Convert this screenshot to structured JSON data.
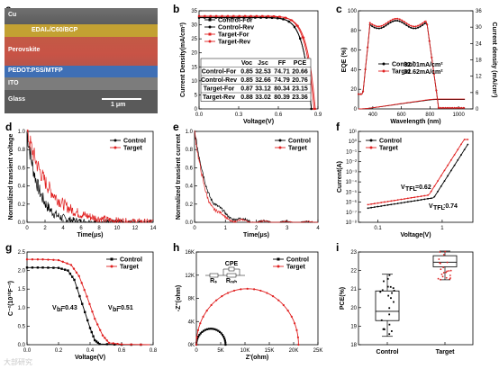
{
  "panel_labels": [
    "a",
    "b",
    "c",
    "d",
    "e",
    "f",
    "g",
    "h",
    "i"
  ],
  "sem": {
    "layers": [
      "Cu",
      "EDAI₂/C60/BCP",
      "Perovskite",
      "PEDOT:PSS/MTFP",
      "ITO",
      "Glass"
    ],
    "scale_bar": "1 μm",
    "colors": {
      "edai": "#e6b830",
      "perov": "#d0504a",
      "pedot": "#3f6fb5",
      "ito": "#8a8a8a"
    }
  },
  "colors": {
    "control": "#000000",
    "target": "#e02020"
  },
  "watermark": "大部研究",
  "chart_data": [
    {
      "id": "b",
      "type": "line",
      "xlabel": "Voltage(V)",
      "ylabel": "Current Density(mA/cm²)",
      "xlim": [
        0,
        0.9
      ],
      "ylim": [
        0,
        35
      ],
      "xticks": [
        "0.0",
        "0.3",
        "0.6",
        "0.9"
      ],
      "yticks": [
        "0",
        "5",
        "10",
        "15",
        "20",
        "25",
        "30",
        "35"
      ],
      "series": [
        {
          "name": "Control-For",
          "color": "#000000",
          "marker": "square",
          "jsc": 32.53,
          "voc": 0.85
        },
        {
          "name": "Control-Rev",
          "color": "#000000",
          "marker": "circle",
          "jsc": 32.66,
          "voc": 0.85
        },
        {
          "name": "Target-For",
          "color": "#e02020",
          "marker": "square",
          "jsc": 33.12,
          "voc": 0.87
        },
        {
          "name": "Target-Rev",
          "color": "#e02020",
          "marker": "circle",
          "jsc": 33.02,
          "voc": 0.88
        }
      ],
      "table": {
        "headers": [
          "",
          "Voc",
          "Jsc",
          "FF",
          "PCE"
        ],
        "rows": [
          [
            "Control-For",
            "0.85",
            "32.53",
            "74.71",
            "20.66"
          ],
          [
            "Control-Rev",
            "0.85",
            "32.66",
            "74.79",
            "20.76"
          ],
          [
            "Target-For",
            "0.87",
            "33.12",
            "80.34",
            "23.15"
          ],
          [
            "Target-Rev",
            "0.88",
            "33.02",
            "80.39",
            "23.36"
          ]
        ]
      }
    },
    {
      "id": "c",
      "type": "line",
      "xlabel": "Wavelength (nm)",
      "ylabel": "EQE (%)",
      "y2label": "Current density (mA/cm²)",
      "xlim": [
        300,
        1100
      ],
      "ylim": [
        0,
        100
      ],
      "y2lim": [
        0,
        36
      ],
      "xticks": [
        "400",
        "600",
        "800",
        "1000"
      ],
      "yticks": [
        "0",
        "20",
        "40",
        "60",
        "80",
        "100"
      ],
      "y2ticks": [
        "0",
        "6",
        "12",
        "18",
        "24",
        "30",
        "36"
      ],
      "series": [
        {
          "name": "Control",
          "color": "#000000"
        },
        {
          "name": "Target",
          "color": "#e02020"
        }
      ],
      "annotations": [
        {
          "text": "32.01mA/cm²",
          "color": "#000000"
        },
        {
          "text": "32.62mA/cm²",
          "color": "#e02020"
        }
      ]
    },
    {
      "id": "d",
      "type": "line",
      "xlabel": "Time(μs)",
      "ylabel": "Normalized transient voltage",
      "xlim": [
        0,
        14
      ],
      "ylim": [
        0,
        1.0
      ],
      "xticks": [
        "0",
        "2",
        "4",
        "6",
        "8",
        "10",
        "12",
        "14"
      ],
      "yticks": [
        "0.0",
        "0.2",
        "0.4",
        "0.6",
        "0.8",
        "1.0"
      ],
      "series": [
        {
          "name": "Control",
          "color": "#000000",
          "tau": 1.3
        },
        {
          "name": "Target",
          "color": "#e02020",
          "tau": 2.5
        }
      ]
    },
    {
      "id": "e",
      "type": "line",
      "xlabel": "Time(μs)",
      "ylabel": "Normalized transient current",
      "xlim": [
        0,
        4
      ],
      "ylim": [
        0,
        1.0
      ],
      "xticks": [
        "0",
        "1",
        "2",
        "3",
        "4"
      ],
      "yticks": [
        "0.0",
        "0.2",
        "0.4",
        "0.6",
        "0.8",
        "1.0"
      ],
      "series": [
        {
          "name": "Control",
          "color": "#000000",
          "tau": 0.42
        },
        {
          "name": "Target",
          "color": "#e02020",
          "tau": 0.34
        }
      ]
    },
    {
      "id": "f",
      "type": "line",
      "log": true,
      "xlabel": "Voltage(V)",
      "ylabel": "Current(A)",
      "xticks": [
        "0.1",
        "1"
      ],
      "yticks": [
        "10⁻⁸",
        "10⁻⁷",
        "10⁻⁶",
        "10⁻⁵",
        "10⁻⁴",
        "10⁻³",
        "10⁻²",
        "10⁻¹",
        "10⁰",
        "10¹"
      ],
      "series": [
        {
          "name": "Control",
          "color": "#000000"
        },
        {
          "name": "Target",
          "color": "#e02020"
        }
      ],
      "annotations": [
        {
          "text": "V",
          "sub": "TFL",
          "val": "=0.62",
          "color": "#e02020"
        },
        {
          "text": "V",
          "sub": "TFL",
          "val": ":0.74",
          "color": "#000000"
        }
      ]
    },
    {
      "id": "g",
      "type": "line",
      "xlabel": "Voltage(V)",
      "ylabel": "C⁻²(10¹⁰F⁻²)",
      "xlim": [
        0,
        0.8
      ],
      "ylim": [
        0,
        2.5
      ],
      "xticks": [
        "0.0",
        "0.2",
        "0.4",
        "0.6",
        "0.8"
      ],
      "yticks": [
        "0.0",
        "0.5",
        "1.0",
        "1.5",
        "2.0",
        "2.5"
      ],
      "series": [
        {
          "name": "Control",
          "color": "#000000",
          "points": [
            [
              0,
              2.08
            ],
            [
              0.1,
              2.08
            ],
            [
              0.2,
              2.07
            ],
            [
              0.26,
              2.0
            ],
            [
              0.3,
              1.75
            ],
            [
              0.35,
              1.1
            ],
            [
              0.4,
              0.45
            ],
            [
              0.43,
              0.12
            ],
            [
              0.46,
              0.02
            ],
            [
              0.6,
              0
            ],
            [
              0.78,
              0
            ]
          ]
        },
        {
          "name": "Target",
          "color": "#e02020",
          "points": [
            [
              0,
              2.3
            ],
            [
              0.1,
              2.3
            ],
            [
              0.2,
              2.28
            ],
            [
              0.28,
              2.15
            ],
            [
              0.33,
              1.85
            ],
            [
              0.38,
              1.3
            ],
            [
              0.43,
              0.7
            ],
            [
              0.48,
              0.25
            ],
            [
              0.52,
              0.05
            ],
            [
              0.6,
              0.01
            ],
            [
              0.78,
              0
            ]
          ]
        }
      ],
      "annotations": [
        {
          "text": "V",
          "sub": "bi",
          "val": "=0.43",
          "color": "#000000"
        },
        {
          "text": "V",
          "sub": "bi",
          "val": "=0.51",
          "color": "#e02020"
        }
      ]
    },
    {
      "id": "h",
      "type": "scatter",
      "xlabel": "Z'(ohm)",
      "ylabel": "-Z''(ohm)",
      "xlim": [
        0,
        25000
      ],
      "ylim": [
        0,
        16000
      ],
      "xticks": [
        "0",
        "5K",
        "10K",
        "15K",
        "20K",
        "25K"
      ],
      "yticks": [
        "0K",
        "4K",
        "8K",
        "12K",
        "16K"
      ],
      "series": [
        {
          "name": "Control",
          "color": "#000000",
          "r0": 0,
          "r1": 6000
        },
        {
          "name": "Target",
          "color": "#e02020",
          "r0": 0,
          "r1": 21000
        }
      ],
      "circuit": {
        "labels": [
          "CPE",
          "Rₛ",
          "Rᵣₑₕ"
        ]
      }
    },
    {
      "id": "i",
      "type": "box",
      "ylabel": "PCE(%)",
      "ylim": [
        18,
        23
      ],
      "categories": [
        "Control",
        "Target"
      ],
      "yticks": [
        "18",
        "19",
        "20",
        "21",
        "22",
        "23"
      ],
      "boxes": [
        {
          "name": "Control",
          "min": 18.45,
          "q1": 19.3,
          "median": 19.8,
          "q3": 20.9,
          "max": 21.8
        },
        {
          "name": "Target",
          "min": 21.5,
          "q1": 22.2,
          "median": 22.45,
          "q3": 22.8,
          "max": 23.05
        }
      ]
    }
  ]
}
